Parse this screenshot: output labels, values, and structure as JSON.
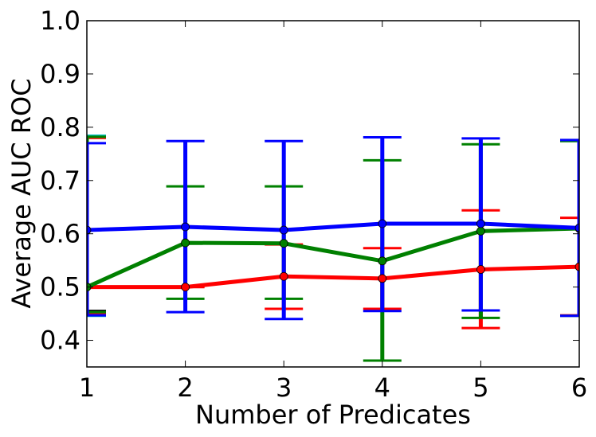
{
  "chart_data": {
    "type": "line",
    "title": "",
    "xlabel": "Number of Predicates",
    "ylabel": "Average AUC ROC",
    "xlim": [
      1,
      6
    ],
    "ylim": [
      0.35,
      1.0
    ],
    "x_ticks": [
      "1",
      "2",
      "3",
      "4",
      "5",
      "6"
    ],
    "y_ticks": [
      "0.4",
      "0.5",
      "0.6",
      "0.7",
      "0.8",
      "0.9",
      "1.0"
    ],
    "grid": false,
    "legend": "none",
    "x": [
      1,
      2,
      3,
      4,
      5,
      6
    ],
    "series": [
      {
        "color": "#0000ff",
        "values": [
          0.607,
          0.613,
          0.607,
          0.619,
          0.619,
          0.611
        ],
        "err_low": [
          0.447,
          0.453,
          0.44,
          0.455,
          0.456,
          0.446
        ],
        "err_high": [
          0.77,
          0.774,
          0.774,
          0.781,
          0.779,
          0.776
        ]
      },
      {
        "color": "#008000",
        "values": [
          0.5,
          0.583,
          0.582,
          0.549,
          0.605,
          0.61
        ],
        "err_low": [
          0.453,
          0.478,
          0.478,
          0.362,
          0.442,
          0.446
        ],
        "err_high": [
          0.782,
          0.689,
          0.689,
          0.738,
          0.768,
          0.774
        ]
      },
      {
        "color": "#ff0000",
        "values": [
          0.5,
          0.5,
          0.52,
          0.516,
          0.533,
          0.538
        ],
        "err_low": [
          0.45,
          0.5,
          0.459,
          0.459,
          0.423,
          0.447
        ],
        "err_high": [
          0.78,
          0.5,
          0.58,
          0.573,
          0.644,
          0.63
        ]
      }
    ],
    "extra_bars_at_x1": [
      {
        "color": "#00bfbf",
        "err_low": 0.446,
        "err_high": 0.784
      },
      {
        "color": "#000000",
        "err_low": 0.455,
        "err_high": 0.455
      }
    ]
  }
}
